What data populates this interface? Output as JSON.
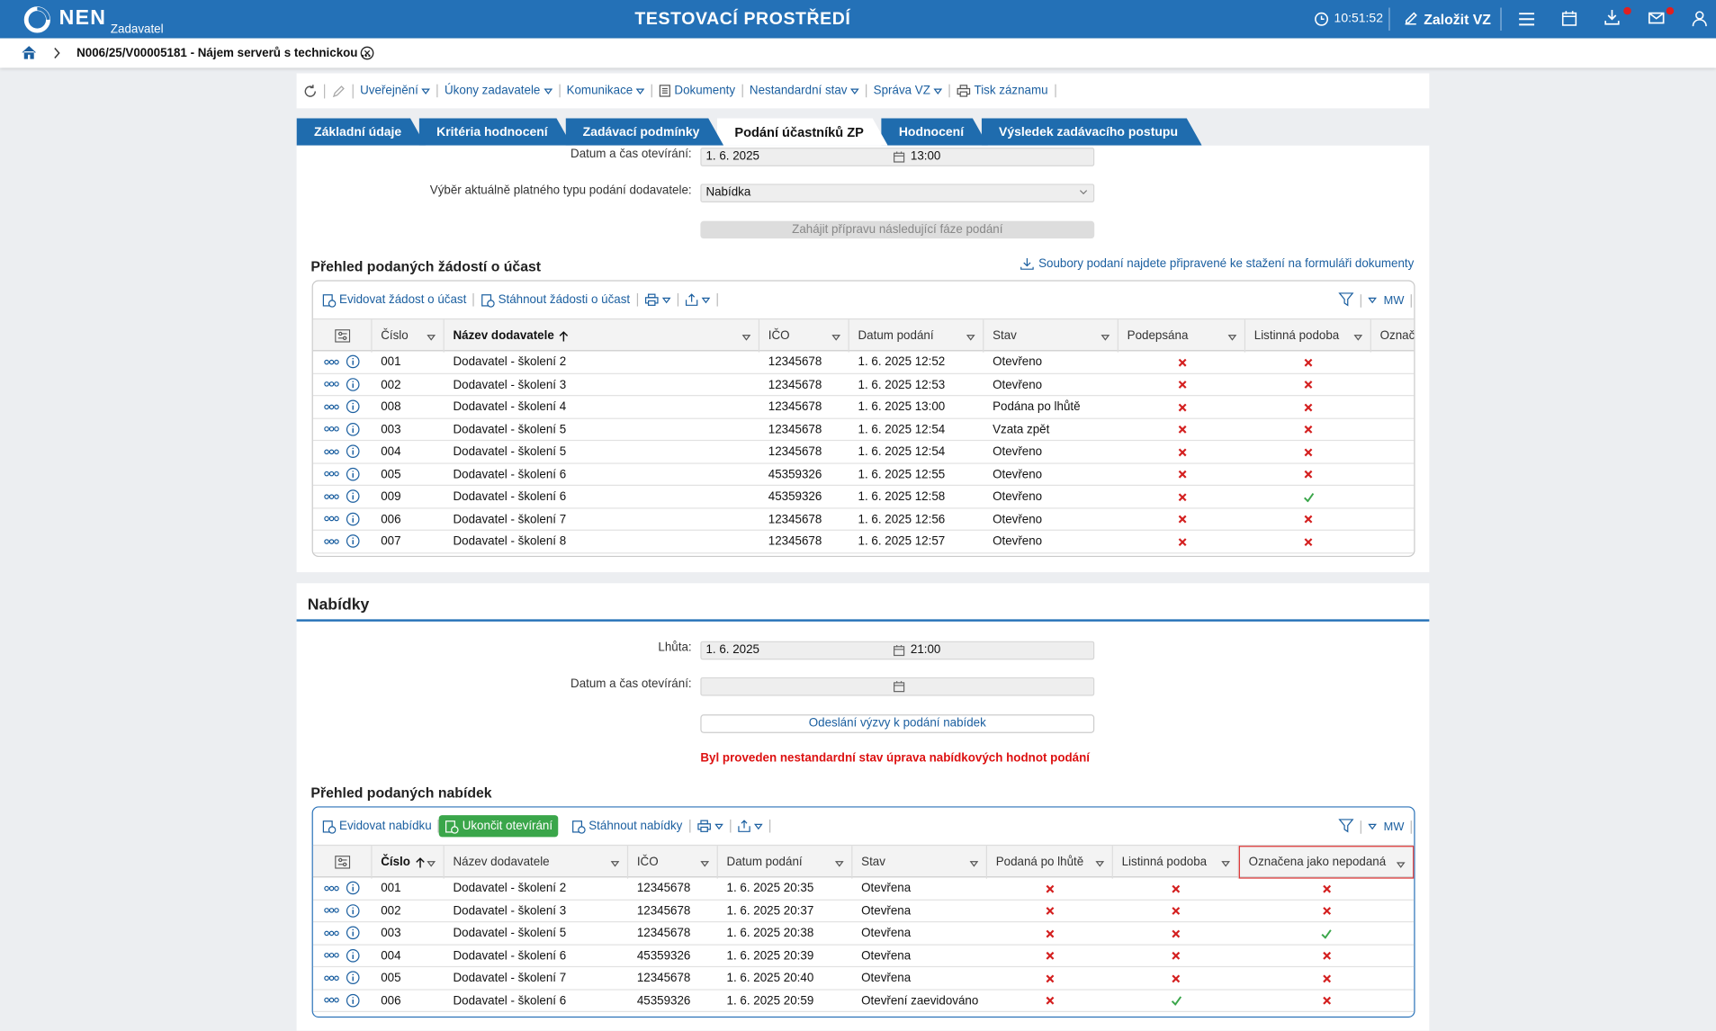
{
  "header": {
    "logo": "NEN",
    "role": "Zadavatel",
    "title": "TESTOVACÍ PROSTŘEDÍ",
    "time": "10:51:52",
    "create_button": "Založit VZ"
  },
  "breadcrumb": {
    "item": "N006/25/V00005181 - Nájem serverů s technickou ..."
  },
  "toolbar": {
    "items": [
      "Uveřejnění",
      "Úkony zadavatele",
      "Komunikace",
      "Dokumenty",
      "Nestandardní stav",
      "Správa VZ",
      "Tisk záznamu"
    ]
  },
  "tabs": {
    "items": [
      "Základní údaje",
      "Kritéria hodnocení",
      "Zadávací podmínky",
      "Podání účastníků ZP",
      "Hodnocení",
      "Výsledek zadávacího postupu"
    ],
    "active": 3
  },
  "requests": {
    "fields": [
      {
        "label": "Datum a čas otevírání:",
        "date": "1. 6. 2025",
        "time": "13:00"
      },
      {
        "label": "Výběr aktuálně platného typu podání dodavatele:",
        "select": "Nabídka"
      }
    ],
    "button": "Zahájit přípravu následující fáze podání",
    "table_title": "Přehled podaných žádostí o účast",
    "download_link": "Soubory podaní najdete připravené ke stažení na formuláři dokumenty",
    "table": {
      "actions": [
        "Evidovat žádost o účast",
        "Stáhnout žádosti o účast"
      ],
      "user": "MW",
      "columns": [
        "Číslo",
        "Název dodavatele",
        "IČO",
        "Datum podání",
        "Stav",
        "Podepsána",
        "Listinná podoba",
        "Označena jako nepodaná"
      ],
      "sorted_column": 1,
      "rows": [
        [
          "001",
          "Dodavatel - školení 2",
          "12345678",
          "1. 6. 2025 12:52",
          "Otevřeno",
          false,
          false,
          null
        ],
        [
          "002",
          "Dodavatel - školení 3",
          "12345678",
          "1. 6. 2025 12:53",
          "Otevřeno",
          false,
          false,
          null
        ],
        [
          "008",
          "Dodavatel - školení 4",
          "12345678",
          "1. 6. 2025 13:00",
          "Podána po lhůtě",
          false,
          false,
          null
        ],
        [
          "003",
          "Dodavatel - školení 5",
          "12345678",
          "1. 6. 2025 12:54",
          "Vzata zpět",
          false,
          false,
          null
        ],
        [
          "004",
          "Dodavatel - školení 5",
          "12345678",
          "1. 6. 2025 12:54",
          "Otevřeno",
          false,
          false,
          null
        ],
        [
          "005",
          "Dodavatel - školení 6",
          "45359326",
          "1. 6. 2025 12:55",
          "Otevřeno",
          false,
          false,
          null
        ],
        [
          "009",
          "Dodavatel - školení 6",
          "45359326",
          "1. 6. 2025 12:58",
          "Otevřeno",
          false,
          true,
          null
        ],
        [
          "006",
          "Dodavatel - školení 7",
          "12345678",
          "1. 6. 2025 12:56",
          "Otevřeno",
          false,
          false,
          null
        ],
        [
          "007",
          "Dodavatel - školení 8",
          "12345678",
          "1. 6. 2025 12:57",
          "Otevřeno",
          false,
          false,
          null
        ]
      ]
    }
  },
  "offers": {
    "title": "Nabídky",
    "fields": [
      {
        "label": "Lhůta:",
        "date": "1. 6. 2025",
        "time": "21:00"
      },
      {
        "label": "Datum a čas otevírání:",
        "date": null,
        "time": null
      }
    ],
    "button": "Odeslání výzvy k podání nabídek",
    "warning": "Byl proveden nestandardní stav úprava nabídkových hodnot podání",
    "table_title": "Přehled podaných nabídek",
    "table": {
      "actions": [
        "Evidovat nabídku",
        "Ukončit otevírání",
        "Stáhnout nabídky"
      ],
      "primary_action": 1,
      "user": "MW",
      "columns": [
        "Číslo",
        "Název dodavatele",
        "IČO",
        "Datum podání",
        "Stav",
        "Podaná po lhůtě",
        "Listinná podoba",
        "Označena jako nepodaná"
      ],
      "sorted_column": 0,
      "highlight_column": 7,
      "rows": [
        [
          "001",
          "Dodavatel - školení 2",
          "12345678",
          "1. 6. 2025 20:35",
          "Otevřena",
          false,
          false,
          false
        ],
        [
          "002",
          "Dodavatel - školení 3",
          "12345678",
          "1. 6. 2025 20:37",
          "Otevřena",
          false,
          false,
          false
        ],
        [
          "003",
          "Dodavatel - školení 5",
          "12345678",
          "1. 6. 2025 20:38",
          "Otevřena",
          false,
          false,
          true
        ],
        [
          "004",
          "Dodavatel - školení 6",
          "45359326",
          "1. 6. 2025 20:39",
          "Otevřena",
          false,
          false,
          false
        ],
        [
          "005",
          "Dodavatel - školení 7",
          "12345678",
          "1. 6. 2025 20:40",
          "Otevřena",
          false,
          false,
          false
        ],
        [
          "006",
          "Dodavatel - školení 6",
          "45359326",
          "1. 6. 2025 20:59",
          "Otevření zaevidováno",
          false,
          true,
          false
        ]
      ]
    }
  }
}
